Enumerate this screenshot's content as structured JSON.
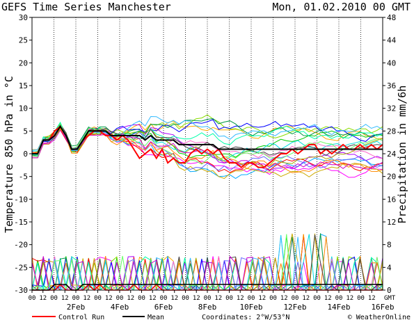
{
  "chart_data": {
    "type": "line",
    "title": "GEFS Time Series Manchester",
    "run_label": "Mon, 01.02.2010 00 GMT",
    "ylabel": "Temperature 850 hPa in °C",
    "y2label": "Precipitation in mm/6h",
    "ylim": [
      -30,
      30
    ],
    "y2lim": [
      0,
      48
    ],
    "yticks": [
      "30",
      "25",
      "20",
      "15",
      "10",
      "5",
      "0",
      "-5",
      "-10",
      "-15",
      "-20",
      "-25",
      "-30"
    ],
    "y2ticks": [
      "48",
      "44",
      "40",
      "36",
      "32",
      "28",
      "24",
      "20",
      "16",
      "12",
      "8",
      "4",
      "0"
    ],
    "hour_ticks": [
      "00",
      "12",
      "00",
      "12",
      "00",
      "12",
      "00",
      "12",
      "00",
      "12",
      "00",
      "12",
      "00",
      "12",
      "00",
      "12",
      "00",
      "12",
      "00",
      "12",
      "00",
      "12",
      "00",
      "12",
      "00",
      "12",
      "00",
      "12",
      "00",
      "12",
      "00",
      "12"
    ],
    "gmt_label": "GMT",
    "date_ticks": [
      "2Feb",
      "4Feb",
      "6Feb",
      "8Feb",
      "10Feb",
      "12Feb",
      "14Feb",
      "16Feb"
    ],
    "grid": true,
    "legend_placement": "bottom",
    "legend": {
      "control": "Control Run",
      "mean": "Mean",
      "coords": "Coordinates: 2°W/53°N",
      "credit": "© WeatherOnline"
    },
    "ensemble_colors": [
      "#ff00ff",
      "#00cc00",
      "#ffaa00",
      "#00aaff",
      "#aa00ff",
      "#88dd00",
      "#ff0000",
      "#00dddd",
      "#0000ff",
      "#ccaa00",
      "#ff66cc",
      "#009944",
      "#6666ff",
      "#aaaa00",
      "#00ffaa",
      "#ff8800",
      "#444444",
      "#33bbff",
      "#cc00cc",
      "#66ff66"
    ],
    "control_color": "#ff0000",
    "mean_color": "#000000",
    "temperature_series": [
      {
        "name": "Control Run",
        "values": [
          0,
          0,
          3,
          3,
          5,
          6,
          4,
          1,
          1,
          3,
          4,
          5,
          5,
          4,
          4,
          3,
          4,
          3,
          1,
          -1,
          0,
          1,
          -1,
          1,
          -2,
          -1,
          -2,
          -2,
          0,
          1,
          0,
          1,
          0,
          1,
          -1,
          -2,
          -2,
          -3,
          -2,
          -2,
          -3,
          -3,
          -2,
          -1,
          0,
          0,
          1,
          0,
          1,
          2,
          2,
          0,
          1,
          0,
          1,
          2,
          1,
          1,
          2,
          1,
          2,
          1,
          2
        ]
      },
      {
        "name": "Mean",
        "values": [
          0,
          0,
          3,
          3,
          4,
          6,
          4,
          1,
          1,
          3,
          5,
          5,
          5,
          5,
          4,
          4,
          4,
          4,
          4,
          4,
          3,
          4,
          3,
          3,
          3,
          3,
          2,
          2,
          2,
          2,
          2,
          2,
          2,
          1,
          1,
          1,
          1,
          1,
          1,
          1,
          1,
          1,
          1,
          1,
          1,
          1,
          1,
          1,
          1,
          1,
          1,
          1,
          1,
          1,
          1,
          1,
          1,
          1,
          1,
          1,
          1,
          1,
          1
        ]
      }
    ],
    "precip_series": [
      {
        "name": "Control Run",
        "values": [
          0,
          0,
          0,
          0,
          0,
          1,
          0,
          0,
          0,
          0,
          1,
          0,
          1,
          0,
          0,
          0,
          0,
          0,
          1,
          0,
          0,
          0,
          1,
          0,
          0,
          0,
          0,
          0,
          0,
          0,
          0,
          0,
          0,
          0,
          0,
          0,
          0,
          0,
          0,
          0,
          0,
          0,
          0,
          0,
          0,
          0,
          0,
          0,
          0,
          0,
          0,
          0,
          0,
          0,
          0,
          0,
          0,
          0,
          0,
          0,
          0,
          0,
          0
        ]
      },
      {
        "name": "Mean",
        "values": [
          0,
          0,
          0,
          0,
          1,
          1,
          1,
          0,
          0,
          1,
          1,
          1,
          1,
          1,
          1,
          1,
          1,
          1,
          1,
          1,
          1,
          1,
          1,
          1,
          1,
          1,
          1,
          1,
          1,
          1,
          1,
          1,
          1,
          1,
          1,
          1,
          1,
          1,
          1,
          1,
          1,
          1,
          1,
          1,
          1,
          1,
          1,
          1,
          1,
          1,
          1,
          1,
          1,
          1,
          1,
          1,
          1,
          1,
          1,
          1,
          1,
          1,
          1
        ]
      }
    ],
    "x_steps": 62
  }
}
